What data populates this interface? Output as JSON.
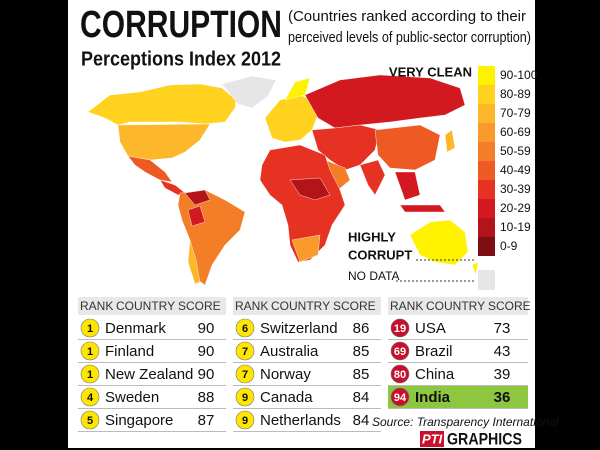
{
  "header": {
    "title": "CORRUPTION",
    "subtitle": "Perceptions Index 2012",
    "note_lines": [
      "(Countries ranked according to their",
      "perceived levels of public-sector corruption)"
    ]
  },
  "map": {
    "labels": {
      "very_clean": "VERY CLEAN",
      "highly": "HIGHLY",
      "corrupt": "CORRUPT",
      "no_data": "NO DATA"
    },
    "no_data_color": "#e6e6e6",
    "legend": [
      {
        "label": "90-100",
        "color": "#fff200"
      },
      {
        "label": "80-89",
        "color": "#ffd21f"
      },
      {
        "label": "70-79",
        "color": "#fdb72b"
      },
      {
        "label": "60-69",
        "color": "#f99b2a"
      },
      {
        "label": "50-59",
        "color": "#f47d27"
      },
      {
        "label": "40-49",
        "color": "#ee5a23"
      },
      {
        "label": "30-39",
        "color": "#e63222"
      },
      {
        "label": "20-29",
        "color": "#d2191f"
      },
      {
        "label": "10-19",
        "color": "#b21419"
      },
      {
        "label": "0-9",
        "color": "#7d0d11"
      }
    ]
  },
  "tables": [
    {
      "headers": [
        "RANK",
        "COUNTRY",
        "SCORE"
      ],
      "rows": [
        [
          1,
          "Denmark",
          90
        ],
        [
          1,
          "Finland",
          90
        ],
        [
          1,
          "New Zealand",
          90
        ],
        [
          4,
          "Sweden",
          88
        ],
        [
          5,
          "Singapore",
          87
        ]
      ]
    },
    {
      "headers": [
        "RANK",
        "COUNTRY",
        "SCORE"
      ],
      "rows": [
        [
          6,
          "Switzerland",
          86
        ],
        [
          7,
          "Australia",
          85
        ],
        [
          7,
          "Norway",
          85
        ],
        [
          9,
          "Canada",
          84
        ],
        [
          9,
          "Netherlands",
          84
        ]
      ]
    },
    {
      "headers": [
        "RANK",
        "COUNTRY",
        "SCORE"
      ],
      "rows": [
        [
          19,
          "USA",
          73
        ],
        [
          69,
          "Brazil",
          43
        ],
        [
          80,
          "China",
          39
        ],
        [
          94,
          "India",
          36
        ]
      ]
    }
  ],
  "source": "Source: Transparency International",
  "credit": {
    "logo": "PTI",
    "text": "GRAPHICS"
  }
}
